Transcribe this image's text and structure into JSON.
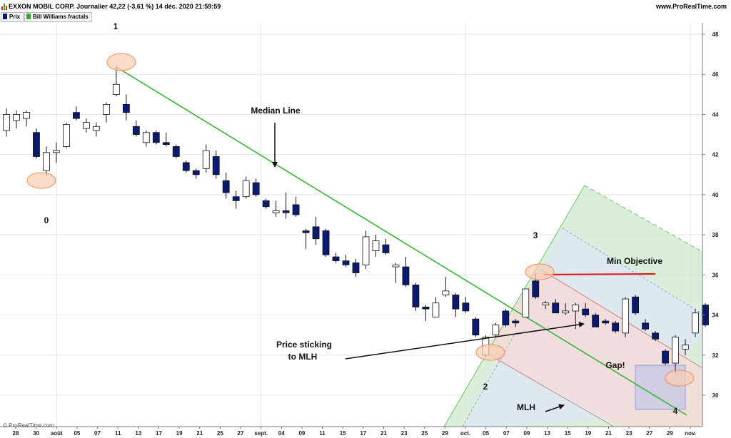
{
  "header": {
    "title": "EXXON MOBIL CORP. Journalier 42,22 (-3,61 %) 14 déc. 2020 21:59:59",
    "website": "www.ProRealTime.com",
    "legend": [
      {
        "label": "Prix",
        "color": "#0a1a6e"
      },
      {
        "label": "Bill Williams fractals",
        "color": "#2eaa2e"
      }
    ]
  },
  "footer": {
    "copyright": "© ProRealTime.com"
  },
  "colors": {
    "bear_candle": "#0a1a6e",
    "bull_candle": "#ffffff",
    "median_line": "#34b534",
    "fork_fill": "#cfe8cf",
    "upper_fill": "#dde5f6",
    "lower_fill": "#f7d8d8",
    "objective_line": "#e01e1e",
    "pivot_circle": "#f4a27a",
    "gap_box": "#8c9be0"
  },
  "chart_data": {
    "type": "candlestick",
    "title": "EXXON MOBIL CORP.",
    "y_axis": {
      "min": 28.6,
      "max": 49.0,
      "ticks": [
        30,
        32,
        34,
        36,
        38,
        40,
        42,
        44,
        46,
        48
      ]
    },
    "x_tick_labels": [
      "28",
      "30",
      "août",
      "05",
      "07",
      "11",
      "13",
      "17",
      "19",
      "21",
      "25",
      "27",
      "sept.",
      "04",
      "09",
      "11",
      "15",
      "17",
      "21",
      "23",
      "25",
      "29",
      "oct.",
      "05",
      "07",
      "09",
      "13",
      "15",
      "19",
      "21",
      "23",
      "27",
      "29",
      "nov."
    ],
    "candles": [
      {
        "o": 43.2,
        "h": 44.3,
        "l": 42.9,
        "c": 44.0
      },
      {
        "o": 43.7,
        "h": 44.2,
        "l": 43.3,
        "c": 44.0
      },
      {
        "o": 43.8,
        "h": 44.2,
        "l": 43.4,
        "c": 44.1
      },
      {
        "o": 43.1,
        "h": 43.3,
        "l": 41.8,
        "c": 41.9
      },
      {
        "o": 41.2,
        "h": 42.4,
        "l": 40.9,
        "c": 42.1
      },
      {
        "o": 42.1,
        "h": 42.6,
        "l": 41.6,
        "c": 42.2
      },
      {
        "o": 42.4,
        "h": 43.6,
        "l": 42.3,
        "c": 43.5
      },
      {
        "o": 44.1,
        "h": 44.4,
        "l": 43.7,
        "c": 43.8
      },
      {
        "o": 43.3,
        "h": 43.8,
        "l": 43.1,
        "c": 43.6
      },
      {
        "o": 43.2,
        "h": 43.6,
        "l": 42.9,
        "c": 43.4
      },
      {
        "o": 44.0,
        "h": 44.6,
        "l": 43.6,
        "c": 44.5
      },
      {
        "o": 45.0,
        "h": 46.4,
        "l": 44.9,
        "c": 45.5
      },
      {
        "o": 44.5,
        "h": 45.0,
        "l": 43.7,
        "c": 44.1
      },
      {
        "o": 43.4,
        "h": 43.7,
        "l": 42.9,
        "c": 43.0
      },
      {
        "o": 42.6,
        "h": 43.2,
        "l": 42.4,
        "c": 43.1
      },
      {
        "o": 43.1,
        "h": 43.2,
        "l": 42.5,
        "c": 42.6
      },
      {
        "o": 42.6,
        "h": 43.1,
        "l": 42.4,
        "c": 42.5
      },
      {
        "o": 42.4,
        "h": 42.5,
        "l": 41.8,
        "c": 41.9
      },
      {
        "o": 41.6,
        "h": 41.7,
        "l": 41.1,
        "c": 41.2
      },
      {
        "o": 41.2,
        "h": 41.3,
        "l": 40.8,
        "c": 41.0
      },
      {
        "o": 41.3,
        "h": 42.5,
        "l": 41.1,
        "c": 42.2
      },
      {
        "o": 41.9,
        "h": 42.2,
        "l": 40.8,
        "c": 41.0
      },
      {
        "o": 40.7,
        "h": 41.1,
        "l": 39.8,
        "c": 40.1
      },
      {
        "o": 39.9,
        "h": 40.2,
        "l": 39.3,
        "c": 39.7
      },
      {
        "o": 39.9,
        "h": 40.9,
        "l": 39.8,
        "c": 40.7
      },
      {
        "o": 40.6,
        "h": 40.8,
        "l": 39.9,
        "c": 40.0
      },
      {
        "o": 39.7,
        "h": 39.8,
        "l": 39.3,
        "c": 39.4
      },
      {
        "o": 39.1,
        "h": 39.7,
        "l": 38.9,
        "c": 39.2
      },
      {
        "o": 39.2,
        "h": 40.1,
        "l": 38.8,
        "c": 39.1
      },
      {
        "o": 39.5,
        "h": 39.9,
        "l": 38.9,
        "c": 39.0
      },
      {
        "o": 38.2,
        "h": 38.3,
        "l": 37.3,
        "c": 38.1
      },
      {
        "o": 38.4,
        "h": 38.9,
        "l": 37.5,
        "c": 37.8
      },
      {
        "o": 38.2,
        "h": 38.3,
        "l": 36.9,
        "c": 37.0
      },
      {
        "o": 36.9,
        "h": 37.1,
        "l": 36.6,
        "c": 36.7
      },
      {
        "o": 36.7,
        "h": 37.0,
        "l": 36.4,
        "c": 36.5
      },
      {
        "o": 36.6,
        "h": 36.8,
        "l": 35.9,
        "c": 36.1
      },
      {
        "o": 36.5,
        "h": 38.2,
        "l": 36.3,
        "c": 37.9
      },
      {
        "o": 37.2,
        "h": 38.0,
        "l": 36.9,
        "c": 37.7
      },
      {
        "o": 37.5,
        "h": 37.8,
        "l": 37.0,
        "c": 37.1
      },
      {
        "o": 36.4,
        "h": 36.6,
        "l": 35.6,
        "c": 36.5
      },
      {
        "o": 36.4,
        "h": 36.9,
        "l": 35.4,
        "c": 35.5
      },
      {
        "o": 35.5,
        "h": 35.6,
        "l": 34.2,
        "c": 34.4
      },
      {
        "o": 34.4,
        "h": 34.5,
        "l": 33.7,
        "c": 34.3
      },
      {
        "o": 33.9,
        "h": 34.9,
        "l": 33.9,
        "c": 34.6
      },
      {
        "o": 35.0,
        "h": 35.9,
        "l": 34.9,
        "c": 35.2
      },
      {
        "o": 35.0,
        "h": 35.1,
        "l": 33.9,
        "c": 34.3
      },
      {
        "o": 34.6,
        "h": 34.9,
        "l": 34.1,
        "c": 34.2
      },
      {
        "o": 33.8,
        "h": 33.9,
        "l": 32.9,
        "c": 33.0
      },
      {
        "o": 32.0,
        "h": 33.0,
        "l": 31.9,
        "c": 32.9
      },
      {
        "o": 33.0,
        "h": 33.6,
        "l": 32.9,
        "c": 33.5
      },
      {
        "o": 34.2,
        "h": 34.3,
        "l": 33.4,
        "c": 33.5
      },
      {
        "o": 33.7,
        "h": 33.8,
        "l": 33.4,
        "c": 33.6
      },
      {
        "o": 33.9,
        "h": 35.3,
        "l": 33.9,
        "c": 35.3
      },
      {
        "o": 35.7,
        "h": 36.1,
        "l": 34.8,
        "c": 34.9
      },
      {
        "o": 34.5,
        "h": 34.7,
        "l": 34.3,
        "c": 34.6
      },
      {
        "o": 34.6,
        "h": 34.8,
        "l": 34.1,
        "c": 34.1
      },
      {
        "o": 34.1,
        "h": 34.6,
        "l": 34.0,
        "c": 34.2
      },
      {
        "o": 34.2,
        "h": 34.6,
        "l": 33.3,
        "c": 34.5
      },
      {
        "o": 34.3,
        "h": 34.6,
        "l": 33.9,
        "c": 34.0
      },
      {
        "o": 34.0,
        "h": 34.1,
        "l": 33.4,
        "c": 33.4
      },
      {
        "o": 33.7,
        "h": 33.8,
        "l": 33.5,
        "c": 33.6
      },
      {
        "o": 33.6,
        "h": 33.7,
        "l": 33.1,
        "c": 33.2
      },
      {
        "o": 33.1,
        "h": 34.9,
        "l": 32.9,
        "c": 34.8
      },
      {
        "o": 34.9,
        "h": 35.0,
        "l": 34.0,
        "c": 34.1
      },
      {
        "o": 33.6,
        "h": 33.8,
        "l": 33.2,
        "c": 33.3
      },
      {
        "o": 33.1,
        "h": 33.2,
        "l": 32.7,
        "c": 32.8
      },
      {
        "o": 32.2,
        "h": 32.3,
        "l": 31.5,
        "c": 31.6
      },
      {
        "o": 31.6,
        "h": 33.0,
        "l": 31.1,
        "c": 32.9
      },
      {
        "o": 32.3,
        "h": 32.8,
        "l": 32.0,
        "c": 32.5
      },
      {
        "o": 33.1,
        "h": 34.3,
        "l": 32.9,
        "c": 34.1
      },
      {
        "o": 34.5,
        "h": 34.6,
        "l": 33.4,
        "c": 33.5
      }
    ],
    "annotations": [
      {
        "text": "0"
      },
      {
        "text": "1"
      },
      {
        "text": "2"
      },
      {
        "text": "3"
      },
      {
        "text": "4"
      },
      {
        "text": "Median Line"
      },
      {
        "text": "Price sticking"
      },
      {
        "text": "to MLH"
      },
      {
        "text": "Min Objective"
      },
      {
        "text": "Gap!"
      },
      {
        "text": "MLH"
      }
    ],
    "min_objective_price": 36.0
  }
}
